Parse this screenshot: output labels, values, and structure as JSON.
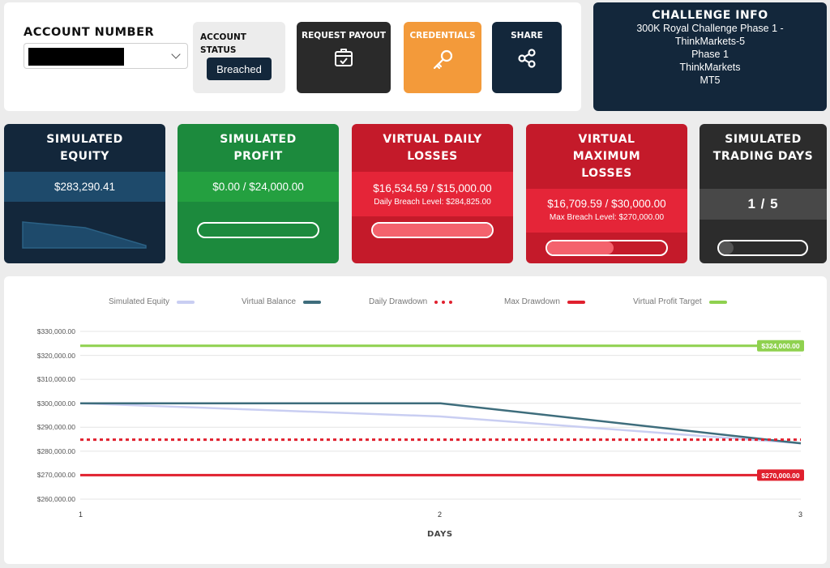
{
  "account": {
    "label": "ACCOUNT NUMBER",
    "status_label": "ACCOUNT STATUS",
    "status_value": "Breached"
  },
  "buttons": {
    "payout": "REQUEST PAYOUT",
    "credentials": "CREDENTIALS",
    "share": "SHARE"
  },
  "challenge": {
    "title": "CHALLENGE INFO",
    "lines": [
      "300K Royal Challenge Phase 1 -",
      "ThinkMarkets-5",
      "Phase 1",
      "ThinkMarkets",
      "MT5"
    ]
  },
  "cards": {
    "equity": {
      "title": "SIMULATED EQUITY",
      "value": "$283,290.41"
    },
    "profit": {
      "title": "SIMULATED PROFIT",
      "value": "$0.00 / $24,000.00",
      "progress": 0
    },
    "daily": {
      "title": "VIRTUAL DAILY LOSSES",
      "value": "$16,534.59 / $15,000.00",
      "sub": "Daily Breach Level: $284,825.00",
      "progress": 1.0
    },
    "max": {
      "title": "VIRTUAL MAXIMUM LOSSES",
      "value": "$16,709.59 / $30,000.00",
      "sub": "Max Breach Level: $270,000.00",
      "progress": 0.557
    },
    "days": {
      "title": "SIMULATED TRADING DAYS",
      "value": "1 / 5",
      "progress": 0.2
    }
  },
  "colors": {
    "navy": "#13273b",
    "green": "#1c8a3d",
    "red": "#c41a2a",
    "orange": "#f39a3a",
    "equity_line": "#c9cef2",
    "balance_line": "#3e6d7c",
    "daily_dd": "#e0202e",
    "max_dd": "#e0202e",
    "target": "#8fd14f"
  },
  "chart_data": {
    "type": "line",
    "xlabel": "DAYS",
    "ylabel": "",
    "x": [
      1,
      2,
      3
    ],
    "ylim": [
      260000,
      330000
    ],
    "yticks": [
      260000,
      270000,
      280000,
      290000,
      300000,
      310000,
      320000,
      330000
    ],
    "ytick_labels": [
      "$260,000.00",
      "$270,000.00",
      "$280,000.00",
      "$290,000.00",
      "$300,000.00",
      "$310,000.00",
      "$320,000.00",
      "$330,000.00"
    ],
    "legend_position": "top",
    "grid": true,
    "series": [
      {
        "name": "Simulated Equity",
        "values": [
          300000,
          294500,
          283290.41
        ],
        "style": "solid"
      },
      {
        "name": "Virtual Balance",
        "values": [
          300000,
          300000,
          283290.41
        ],
        "style": "solid"
      },
      {
        "name": "Daily Drawdown",
        "values": [
          284825,
          284825,
          284825
        ],
        "style": "dotted"
      },
      {
        "name": "Max Drawdown",
        "values": [
          270000,
          270000,
          270000
        ],
        "style": "solid",
        "end_label": "$270,000.00"
      },
      {
        "name": "Virtual Profit Target",
        "values": [
          324000,
          324000,
          324000
        ],
        "style": "solid",
        "end_label": "$324,000.00"
      }
    ]
  }
}
